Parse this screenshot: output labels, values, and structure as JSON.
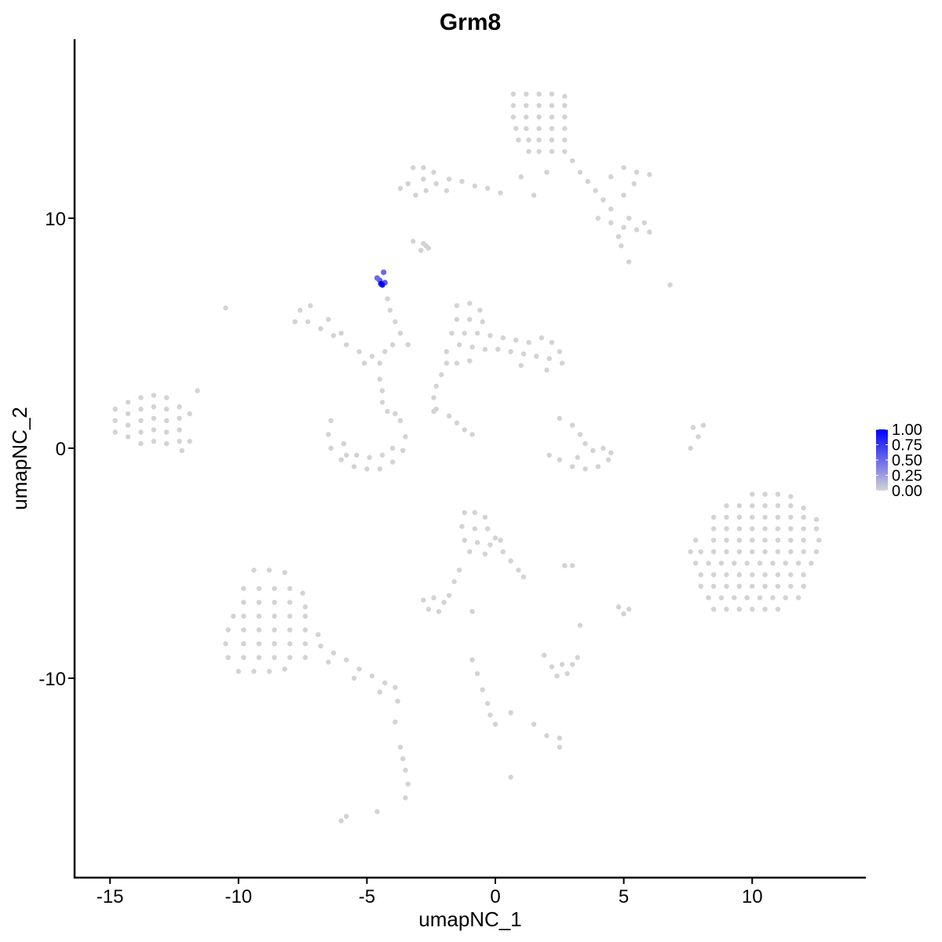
{
  "chart_data": {
    "type": "scatter",
    "title": "Grm8",
    "xlabel": "umapNC_1",
    "ylabel": "umapNC_2",
    "xlim": [
      -16.4,
      14.4
    ],
    "ylim": [
      -18.7,
      17.8
    ],
    "x_ticks": [
      -15,
      -10,
      -5,
      0,
      5,
      10
    ],
    "x_tick_labels": [
      "-15",
      "-10",
      "-5",
      "0",
      "5",
      "10"
    ],
    "y_ticks": [
      -10,
      0,
      10
    ],
    "y_tick_labels": [
      "-10",
      "0",
      "10"
    ],
    "grid": false,
    "color_scale": {
      "low": "#d3d3d3",
      "high": "#0000ff",
      "min": 0,
      "max": 1
    },
    "legend": {
      "placement": "right",
      "type": "colorbar",
      "ticks": [
        1.0,
        0.75,
        0.5,
        0.25,
        0.0
      ],
      "tick_labels": [
        "1.00",
        "0.75",
        "0.50",
        "0.25",
        "0.00"
      ]
    },
    "points_zero": [
      [
        0.7,
        15.4
      ],
      [
        1.2,
        15.4
      ],
      [
        1.7,
        15.4
      ],
      [
        2.2,
        15.4
      ],
      [
        2.7,
        15.3
      ],
      [
        0.7,
        14.9
      ],
      [
        1.2,
        14.9
      ],
      [
        1.7,
        14.9
      ],
      [
        2.2,
        14.9
      ],
      [
        2.7,
        14.9
      ],
      [
        0.7,
        14.4
      ],
      [
        1.2,
        14.4
      ],
      [
        1.7,
        14.4
      ],
      [
        2.2,
        14.4
      ],
      [
        2.7,
        14.4
      ],
      [
        0.8,
        13.9
      ],
      [
        1.2,
        13.9
      ],
      [
        1.7,
        13.9
      ],
      [
        2.2,
        13.9
      ],
      [
        2.7,
        13.9
      ],
      [
        0.9,
        13.4
      ],
      [
        1.3,
        13.4
      ],
      [
        1.7,
        13.4
      ],
      [
        2.2,
        13.4
      ],
      [
        2.7,
        13.4
      ],
      [
        1.3,
        12.9
      ],
      [
        1.7,
        12.9
      ],
      [
        2.2,
        12.9
      ],
      [
        2.7,
        12.9
      ],
      [
        3.0,
        12.5
      ],
      [
        3.3,
        12.0
      ],
      [
        3.6,
        11.6
      ],
      [
        3.9,
        11.2
      ],
      [
        4.2,
        10.8
      ],
      [
        4.5,
        10.4
      ],
      [
        4.0,
        10.0
      ],
      [
        4.5,
        9.8
      ],
      [
        5.0,
        9.6
      ],
      [
        5.5,
        9.5
      ],
      [
        6.0,
        9.4
      ],
      [
        5.8,
        9.8
      ],
      [
        5.2,
        10.0
      ],
      [
        4.8,
        9.2
      ],
      [
        4.9,
        8.8
      ],
      [
        5.0,
        12.2
      ],
      [
        5.5,
        12.0
      ],
      [
        6.0,
        11.9
      ],
      [
        5.4,
        11.5
      ],
      [
        4.5,
        11.8
      ],
      [
        5.0,
        11.0
      ],
      [
        5.2,
        8.1
      ],
      [
        2.0,
        12.0
      ],
      [
        1.0,
        11.8
      ],
      [
        1.5,
        11.0
      ],
      [
        6.8,
        7.1
      ],
      [
        -3.2,
        12.2
      ],
      [
        -2.8,
        12.2
      ],
      [
        -2.4,
        12.0
      ],
      [
        -2.8,
        11.7
      ],
      [
        -2.3,
        11.5
      ],
      [
        -1.8,
        11.7
      ],
      [
        -1.3,
        11.6
      ],
      [
        -0.8,
        11.4
      ],
      [
        -0.3,
        11.3
      ],
      [
        0.2,
        11.1
      ],
      [
        -3.4,
        11.5
      ],
      [
        -3.7,
        11.3
      ],
      [
        -1.9,
        11.2
      ],
      [
        -2.7,
        11.2
      ],
      [
        -3.1,
        11.0
      ],
      [
        -2.8,
        8.9
      ],
      [
        -2.6,
        8.7
      ],
      [
        -2.9,
        8.6
      ],
      [
        -14.8,
        1.7
      ],
      [
        -14.8,
        1.2
      ],
      [
        -14.8,
        0.7
      ],
      [
        -14.3,
        2.0
      ],
      [
        -14.3,
        1.5
      ],
      [
        -14.3,
        1.0
      ],
      [
        -14.3,
        0.5
      ],
      [
        -13.8,
        2.2
      ],
      [
        -13.8,
        1.7
      ],
      [
        -13.8,
        1.2
      ],
      [
        -13.8,
        0.7
      ],
      [
        -13.8,
        0.2
      ],
      [
        -13.3,
        2.3
      ],
      [
        -13.3,
        1.8
      ],
      [
        -13.3,
        1.3
      ],
      [
        -13.3,
        0.8
      ],
      [
        -13.3,
        0.3
      ],
      [
        -12.8,
        2.2
      ],
      [
        -12.8,
        1.7
      ],
      [
        -12.8,
        1.2
      ],
      [
        -12.8,
        0.7
      ],
      [
        -12.8,
        0.2
      ],
      [
        -12.3,
        1.8
      ],
      [
        -12.3,
        1.3
      ],
      [
        -12.3,
        0.8
      ],
      [
        -12.3,
        0.3
      ],
      [
        -11.9,
        1.5
      ],
      [
        -11.6,
        2.5
      ],
      [
        -11.9,
        0.3
      ],
      [
        -12.2,
        -0.1
      ],
      [
        -10.5,
        6.1
      ],
      [
        -7.6,
        6.0
      ],
      [
        -7.2,
        6.2
      ],
      [
        -7.8,
        5.5
      ],
      [
        -7.3,
        5.5
      ],
      [
        -6.8,
        5.2
      ],
      [
        -6.3,
        4.9
      ],
      [
        -5.8,
        4.5
      ],
      [
        -5.3,
        4.2
      ],
      [
        -4.8,
        4.0
      ],
      [
        -5.1,
        3.7
      ],
      [
        -4.5,
        3.7
      ],
      [
        -4.3,
        4.2
      ],
      [
        -6.5,
        5.6
      ],
      [
        -6.0,
        5.0
      ],
      [
        -4.5,
        3.0
      ],
      [
        -4.4,
        2.5
      ],
      [
        -4.4,
        2.0
      ],
      [
        -4.2,
        1.6
      ],
      [
        -4.0,
        4.5
      ],
      [
        -3.7,
        5.0
      ],
      [
        -3.4,
        4.5
      ],
      [
        -4.1,
        6.0
      ],
      [
        -4.2,
        6.5
      ],
      [
        -3.9,
        5.5
      ],
      [
        -3.2,
        9.0
      ],
      [
        -2.7,
        8.8
      ],
      [
        -6.4,
        1.2
      ],
      [
        -6.5,
        0.6
      ],
      [
        -6.4,
        0.0
      ],
      [
        -6.0,
        -0.5
      ],
      [
        -5.5,
        -0.8
      ],
      [
        -5.0,
        -0.9
      ],
      [
        -4.5,
        -0.9
      ],
      [
        -4.0,
        -0.6
      ],
      [
        -3.6,
        -0.1
      ],
      [
        -3.5,
        0.5
      ],
      [
        -3.7,
        1.2
      ],
      [
        -5.9,
        0.2
      ],
      [
        -5.4,
        -0.3
      ],
      [
        -4.9,
        -0.4
      ],
      [
        -4.4,
        -0.3
      ],
      [
        -4.0,
        0.0
      ],
      [
        -5.8,
        -0.3
      ],
      [
        -3.9,
        1.5
      ],
      [
        -1.5,
        6.2
      ],
      [
        -1.0,
        6.3
      ],
      [
        -0.6,
        6.0
      ],
      [
        -1.5,
        5.6
      ],
      [
        -1.0,
        5.6
      ],
      [
        -0.5,
        5.5
      ],
      [
        -1.7,
        5.0
      ],
      [
        -1.2,
        5.0
      ],
      [
        -0.7,
        5.0
      ],
      [
        -0.2,
        4.9
      ],
      [
        0.3,
        4.8
      ],
      [
        0.8,
        4.7
      ],
      [
        1.3,
        4.6
      ],
      [
        1.8,
        4.8
      ],
      [
        2.2,
        4.6
      ],
      [
        2.5,
        4.2
      ],
      [
        2.6,
        3.7
      ],
      [
        2.1,
        3.9
      ],
      [
        1.6,
        4.0
      ],
      [
        1.1,
        4.1
      ],
      [
        0.6,
        4.2
      ],
      [
        0.1,
        4.3
      ],
      [
        -0.4,
        4.3
      ],
      [
        -0.9,
        4.4
      ],
      [
        -1.4,
        4.5
      ],
      [
        -1.9,
        4.2
      ],
      [
        -1.9,
        3.7
      ],
      [
        -2.1,
        3.2
      ],
      [
        -2.3,
        2.7
      ],
      [
        -2.4,
        2.2
      ],
      [
        -1.5,
        3.7
      ],
      [
        -1.0,
        3.8
      ],
      [
        1.0,
        3.6
      ],
      [
        2.0,
        3.4
      ],
      [
        -2.3,
        1.7
      ],
      [
        -1.8,
        1.4
      ],
      [
        -1.5,
        1.1
      ],
      [
        -1.2,
        0.8
      ],
      [
        -0.9,
        0.6
      ],
      [
        -2.4,
        1.6
      ],
      [
        2.5,
        1.3
      ],
      [
        3.0,
        1.0
      ],
      [
        3.3,
        0.6
      ],
      [
        3.5,
        0.2
      ],
      [
        3.8,
        -0.1
      ],
      [
        4.2,
        0.0
      ],
      [
        4.4,
        -0.5
      ],
      [
        4.0,
        -0.8
      ],
      [
        3.5,
        -0.9
      ],
      [
        3.0,
        -0.8
      ],
      [
        2.5,
        -0.5
      ],
      [
        2.1,
        -0.3
      ],
      [
        3.2,
        -0.4
      ],
      [
        4.5,
        -0.2
      ],
      [
        7.7,
        0.9
      ],
      [
        7.9,
        0.5
      ],
      [
        7.6,
        0.0
      ],
      [
        8.1,
        1.0
      ],
      [
        -1.2,
        -2.8
      ],
      [
        -0.8,
        -2.8
      ],
      [
        -0.4,
        -3.0
      ],
      [
        -1.3,
        -3.4
      ],
      [
        -0.8,
        -3.5
      ],
      [
        -0.3,
        -3.5
      ],
      [
        0.0,
        -3.9
      ],
      [
        -1.2,
        -4.0
      ],
      [
        -0.7,
        -4.1
      ],
      [
        -0.2,
        -4.2
      ],
      [
        0.3,
        -4.5
      ],
      [
        0.6,
        -4.9
      ],
      [
        0.9,
        -5.3
      ],
      [
        1.1,
        -5.6
      ],
      [
        -1.0,
        -4.5
      ],
      [
        -0.4,
        -4.6
      ],
      [
        0.2,
        -4.0
      ],
      [
        -2.8,
        -6.6
      ],
      [
        -2.4,
        -6.5
      ],
      [
        -2.0,
        -6.7
      ],
      [
        -2.6,
        -7.0
      ],
      [
        -2.2,
        -7.1
      ],
      [
        -1.8,
        -6.4
      ],
      [
        -1.6,
        -5.8
      ],
      [
        -1.4,
        -5.3
      ],
      [
        10.0,
        -2.0
      ],
      [
        10.5,
        -2.0
      ],
      [
        11.0,
        -2.0
      ],
      [
        11.5,
        -2.1
      ],
      [
        9.0,
        -2.5
      ],
      [
        9.5,
        -2.5
      ],
      [
        10.0,
        -2.5
      ],
      [
        10.5,
        -2.5
      ],
      [
        11.0,
        -2.5
      ],
      [
        11.5,
        -2.5
      ],
      [
        12.0,
        -2.6
      ],
      [
        8.5,
        -3.0
      ],
      [
        9.0,
        -3.0
      ],
      [
        9.5,
        -3.0
      ],
      [
        10.0,
        -3.0
      ],
      [
        10.5,
        -3.0
      ],
      [
        11.0,
        -3.0
      ],
      [
        11.5,
        -3.0
      ],
      [
        12.0,
        -3.0
      ],
      [
        12.5,
        -3.1
      ],
      [
        8.5,
        -3.5
      ],
      [
        9.0,
        -3.5
      ],
      [
        9.5,
        -3.5
      ],
      [
        10.0,
        -3.5
      ],
      [
        10.5,
        -3.5
      ],
      [
        11.0,
        -3.5
      ],
      [
        11.5,
        -3.5
      ],
      [
        12.0,
        -3.5
      ],
      [
        12.5,
        -3.5
      ],
      [
        7.8,
        -4.0
      ],
      [
        8.5,
        -4.0
      ],
      [
        9.0,
        -4.0
      ],
      [
        9.5,
        -4.0
      ],
      [
        10.0,
        -4.0
      ],
      [
        10.5,
        -4.0
      ],
      [
        11.0,
        -4.0
      ],
      [
        11.5,
        -4.0
      ],
      [
        12.0,
        -4.0
      ],
      [
        12.6,
        -4.0
      ],
      [
        7.6,
        -4.5
      ],
      [
        8.0,
        -4.5
      ],
      [
        8.5,
        -4.5
      ],
      [
        9.0,
        -4.5
      ],
      [
        9.5,
        -4.5
      ],
      [
        10.0,
        -4.5
      ],
      [
        10.5,
        -4.5
      ],
      [
        11.0,
        -4.5
      ],
      [
        11.5,
        -4.5
      ],
      [
        12.0,
        -4.5
      ],
      [
        12.5,
        -4.5
      ],
      [
        7.8,
        -5.0
      ],
      [
        8.3,
        -5.0
      ],
      [
        8.8,
        -5.0
      ],
      [
        9.3,
        -5.0
      ],
      [
        9.8,
        -5.0
      ],
      [
        10.3,
        -5.0
      ],
      [
        10.8,
        -5.0
      ],
      [
        11.3,
        -5.0
      ],
      [
        11.8,
        -5.0
      ],
      [
        12.3,
        -5.0
      ],
      [
        8.0,
        -5.5
      ],
      [
        8.5,
        -5.5
      ],
      [
        9.0,
        -5.5
      ],
      [
        9.5,
        -5.5
      ],
      [
        10.0,
        -5.5
      ],
      [
        10.5,
        -5.5
      ],
      [
        11.0,
        -5.5
      ],
      [
        11.5,
        -5.5
      ],
      [
        12.0,
        -5.5
      ],
      [
        8.0,
        -6.0
      ],
      [
        8.5,
        -6.0
      ],
      [
        9.0,
        -6.0
      ],
      [
        9.5,
        -6.0
      ],
      [
        10.0,
        -6.0
      ],
      [
        10.5,
        -6.0
      ],
      [
        11.0,
        -6.0
      ],
      [
        11.5,
        -6.0
      ],
      [
        12.0,
        -6.0
      ],
      [
        8.3,
        -6.5
      ],
      [
        8.8,
        -6.5
      ],
      [
        9.3,
        -6.5
      ],
      [
        9.8,
        -6.5
      ],
      [
        10.3,
        -6.5
      ],
      [
        10.8,
        -6.5
      ],
      [
        11.3,
        -6.5
      ],
      [
        11.8,
        -6.5
      ],
      [
        8.5,
        -7.0
      ],
      [
        9.0,
        -7.0
      ],
      [
        9.5,
        -7.0
      ],
      [
        10.0,
        -7.0
      ],
      [
        10.5,
        -7.0
      ],
      [
        11.0,
        -7.0
      ],
      [
        -9.4,
        -5.3
      ],
      [
        -8.8,
        -5.3
      ],
      [
        -8.2,
        -5.4
      ],
      [
        -9.8,
        -6.1
      ],
      [
        -9.2,
        -6.1
      ],
      [
        -8.6,
        -6.1
      ],
      [
        -8.0,
        -6.1
      ],
      [
        -7.5,
        -6.3
      ],
      [
        -9.8,
        -6.7
      ],
      [
        -9.2,
        -6.7
      ],
      [
        -8.6,
        -6.7
      ],
      [
        -8.0,
        -6.7
      ],
      [
        -7.4,
        -6.9
      ],
      [
        -10.2,
        -7.3
      ],
      [
        -9.8,
        -7.3
      ],
      [
        -9.2,
        -7.3
      ],
      [
        -8.6,
        -7.3
      ],
      [
        -8.0,
        -7.3
      ],
      [
        -7.4,
        -7.3
      ],
      [
        -10.4,
        -7.9
      ],
      [
        -9.8,
        -7.9
      ],
      [
        -9.2,
        -7.9
      ],
      [
        -8.6,
        -7.9
      ],
      [
        -8.0,
        -7.9
      ],
      [
        -7.4,
        -7.9
      ],
      [
        -6.9,
        -8.1
      ],
      [
        -10.5,
        -8.5
      ],
      [
        -9.8,
        -8.5
      ],
      [
        -9.2,
        -8.5
      ],
      [
        -8.6,
        -8.5
      ],
      [
        -8.0,
        -8.5
      ],
      [
        -7.4,
        -8.5
      ],
      [
        -10.4,
        -9.1
      ],
      [
        -9.8,
        -9.1
      ],
      [
        -9.2,
        -9.1
      ],
      [
        -8.6,
        -9.1
      ],
      [
        -8.0,
        -9.1
      ],
      [
        -7.4,
        -9.1
      ],
      [
        -10.0,
        -9.7
      ],
      [
        -9.4,
        -9.7
      ],
      [
        -8.8,
        -9.7
      ],
      [
        -8.2,
        -9.6
      ],
      [
        -6.8,
        -8.6
      ],
      [
        -6.3,
        -8.9
      ],
      [
        -5.8,
        -9.2
      ],
      [
        -5.3,
        -9.6
      ],
      [
        -4.8,
        -9.9
      ],
      [
        -4.3,
        -10.2
      ],
      [
        -3.9,
        -10.4
      ],
      [
        -6.5,
        -9.3
      ],
      [
        -5.5,
        -10.0
      ],
      [
        -4.5,
        -10.6
      ],
      [
        2.2,
        -9.5
      ],
      [
        2.6,
        -9.4
      ],
      [
        3.0,
        -9.4
      ],
      [
        3.2,
        -9.1
      ],
      [
        2.4,
        -9.9
      ],
      [
        2.8,
        -9.8
      ],
      [
        1.9,
        -9.0
      ],
      [
        -0.9,
        -9.2
      ],
      [
        -0.7,
        -9.8
      ],
      [
        -0.5,
        -10.5
      ],
      [
        -0.3,
        -11.1
      ],
      [
        -0.2,
        -11.6
      ],
      [
        0.0,
        -12.0
      ],
      [
        0.6,
        -11.5
      ],
      [
        1.5,
        -12.0
      ],
      [
        2.0,
        -12.5
      ],
      [
        2.5,
        -12.6
      ],
      [
        2.5,
        -13.0
      ],
      [
        5.0,
        -7.2
      ],
      [
        5.2,
        -7.0
      ],
      [
        4.8,
        -6.9
      ],
      [
        3.3,
        -7.7
      ],
      [
        2.7,
        -5.1
      ],
      [
        3.0,
        -5.1
      ],
      [
        -0.9,
        -7.1
      ],
      [
        -3.6,
        -13.5
      ],
      [
        -3.5,
        -14.0
      ],
      [
        -3.4,
        -14.6
      ],
      [
        -3.5,
        -15.2
      ],
      [
        -3.7,
        -13.0
      ],
      [
        -3.9,
        -11.9
      ],
      [
        -6.0,
        -16.2
      ],
      [
        -5.8,
        -16.0
      ],
      [
        -4.6,
        -15.8
      ],
      [
        0.6,
        -14.3
      ],
      [
        -3.8,
        -11.0
      ]
    ],
    "points_expressed": [
      {
        "x": -4.6,
        "y": 7.4,
        "value": 0.5
      },
      {
        "x": -4.5,
        "y": 7.3,
        "value": 0.55
      },
      {
        "x": -4.35,
        "y": 7.65,
        "value": 0.5
      },
      {
        "x": -4.3,
        "y": 7.2,
        "value": 0.6
      },
      {
        "x": -4.4,
        "y": 7.1,
        "value": 0.9
      },
      {
        "x": -4.45,
        "y": 7.15,
        "value": 1.0
      }
    ]
  }
}
